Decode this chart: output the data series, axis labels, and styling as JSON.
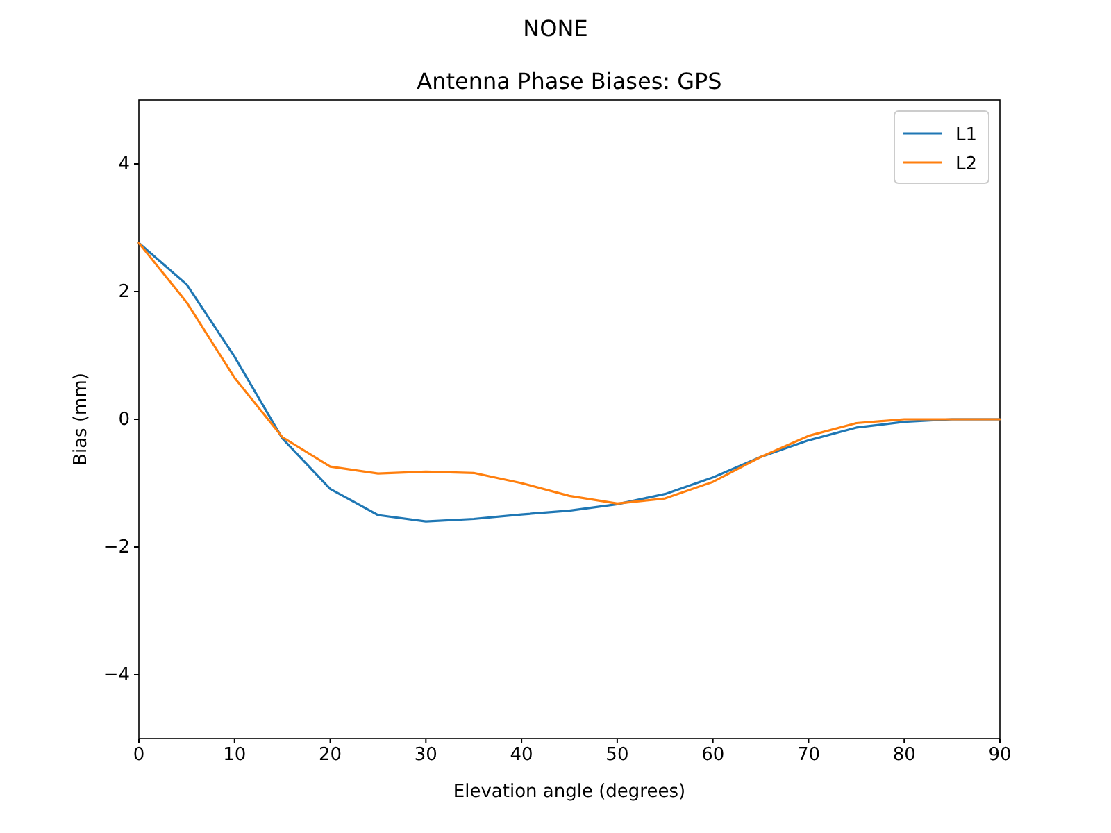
{
  "chart_data": {
    "type": "line",
    "subtitle": "NONE",
    "title": "Antenna Phase Biases: GPS",
    "xlabel": "Elevation angle (degrees)",
    "ylabel": "Bias (mm)",
    "x": [
      0,
      5,
      10,
      15,
      20,
      25,
      30,
      35,
      40,
      45,
      50,
      55,
      60,
      65,
      70,
      75,
      80,
      85,
      90
    ],
    "series": [
      {
        "name": "L1",
        "color": "#1f77b4",
        "values": [
          2.76,
          2.11,
          0.98,
          -0.3,
          -1.09,
          -1.5,
          -1.6,
          -1.56,
          -1.49,
          -1.43,
          -1.33,
          -1.17,
          -0.91,
          -0.59,
          -0.33,
          -0.13,
          -0.04,
          0,
          0
        ]
      },
      {
        "name": "L2",
        "color": "#ff7f0e",
        "values": [
          2.76,
          1.83,
          0.65,
          -0.28,
          -0.74,
          -0.85,
          -0.82,
          -0.84,
          -1.0,
          -1.2,
          -1.32,
          -1.24,
          -0.98,
          -0.59,
          -0.26,
          -0.06,
          0,
          0,
          0
        ]
      }
    ],
    "xlim": [
      0,
      90
    ],
    "xticks": [
      0,
      10,
      20,
      30,
      40,
      50,
      60,
      70,
      80,
      90
    ],
    "ylim": [
      -5,
      5
    ],
    "yticks": [
      {
        "value": -4,
        "label": "−4"
      },
      {
        "value": -2,
        "label": "−2"
      },
      0,
      2,
      4
    ],
    "grid": false,
    "legend": "top right",
    "marker": "none",
    "line_style": "solid"
  }
}
